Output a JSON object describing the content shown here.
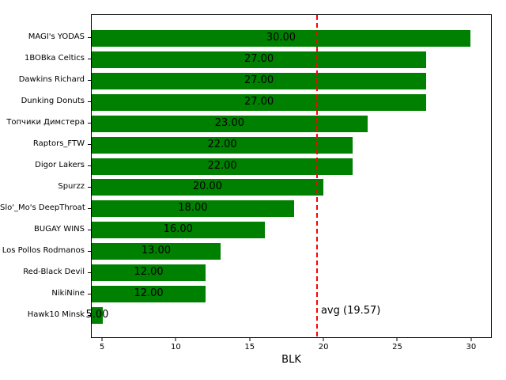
{
  "figure": {
    "background": "#ffffff"
  },
  "chart_data": {
    "type": "bar",
    "orientation": "horizontal",
    "title": "",
    "xlabel": "BLK",
    "ylabel": "",
    "categories": [
      "MAGI's YODAS",
      "1BOBka Celtics",
      "Dawkins Richard",
      "Dunking Donuts",
      "Топчики Димстера",
      "Raptors_FTW",
      "Digor Lakers",
      "Spurzz",
      "Slo'_Mo's DeepThroat",
      "BUGAY WINS",
      "Los Pollos Rodmanos",
      "Red-Black Devil",
      "NikiNine",
      "Hawk10 Minsk"
    ],
    "values": [
      30,
      27,
      27,
      27,
      23,
      22,
      22,
      20,
      18,
      16,
      13,
      12,
      12,
      5
    ],
    "value_labels": [
      "30.00",
      "27.00",
      "27.00",
      "27.00",
      "23.00",
      "22.00",
      "22.00",
      "20.00",
      "18.00",
      "16.00",
      "13.00",
      "12.00",
      "12.00",
      "5.00"
    ],
    "bar_color": "#008000",
    "value_label_color": "#000000",
    "xlim": [
      4.25,
      31.4
    ],
    "xticks": [
      5,
      10,
      15,
      20,
      25,
      30
    ],
    "grid": false,
    "legend": null,
    "avg_line": {
      "value": 19.57,
      "label": "avg (19.57)",
      "color": "#ff0000",
      "style": "dashed"
    }
  }
}
